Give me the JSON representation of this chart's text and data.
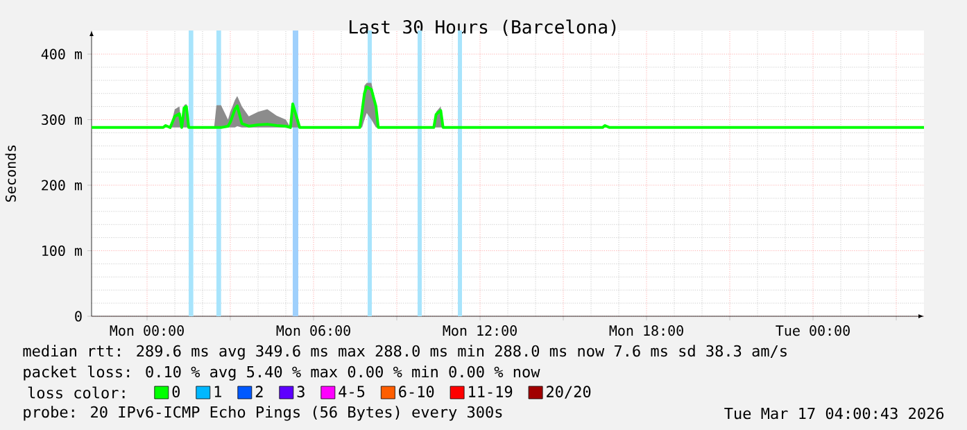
{
  "chart_data": {
    "type": "line",
    "title": "Last 30 Hours (Barcelona)",
    "ylabel": "Seconds",
    "xlim": [
      "2026-03-15T22:00",
      "2026-03-17T04:00"
    ],
    "xticks": [
      {
        "value": "2026-03-16T00:00",
        "label": "Mon 00:00"
      },
      {
        "value": "2026-03-16T03:00",
        "label": null
      },
      {
        "value": "2026-03-16T06:00",
        "label": "Mon 06:00"
      },
      {
        "value": "2026-03-16T09:00",
        "label": null
      },
      {
        "value": "2026-03-16T12:00",
        "label": "Mon 12:00"
      },
      {
        "value": "2026-03-16T15:00",
        "label": null
      },
      {
        "value": "2026-03-16T18:00",
        "label": "Mon 18:00"
      },
      {
        "value": "2026-03-16T21:00",
        "label": null
      },
      {
        "value": "2026-03-17T00:00",
        "label": "Tue 00:00"
      },
      {
        "value": "2026-03-17T03:00",
        "label": null
      }
    ],
    "ylim": [
      0,
      436
    ],
    "yticks": [
      0,
      {
        "value": 100,
        "label": "100 m"
      },
      {
        "value": 200,
        "label": "200 m"
      },
      {
        "value": 300,
        "label": "300 m"
      },
      {
        "value": 400,
        "label": "400 m"
      }
    ],
    "grid": true,
    "legend": "bottom",
    "legend_title": "loss color:",
    "bands": [
      {
        "axis": "x",
        "from": "2026-03-16T01:30",
        "to": "2026-03-16T01:40",
        "color": "#a8e4fc"
      },
      {
        "axis": "x",
        "from": "2026-03-16T02:30",
        "to": "2026-03-16T02:40",
        "color": "#a8e4fc"
      },
      {
        "axis": "x",
        "from": "2026-03-16T05:15",
        "to": "2026-03-16T05:27",
        "color": "#9fd0fc"
      },
      {
        "axis": "x",
        "from": "2026-03-16T07:57",
        "to": "2026-03-16T08:06",
        "color": "#a8e4fc"
      },
      {
        "axis": "x",
        "from": "2026-03-16T09:45",
        "to": "2026-03-16T09:54",
        "color": "#a8e4fc"
      },
      {
        "axis": "x",
        "from": "2026-03-16T11:12",
        "to": "2026-03-16T11:21",
        "color": "#a8e4fc"
      }
    ],
    "series": [
      {
        "name": "0",
        "color": "#00ff00",
        "x": [
          "2026-03-15T22:00",
          "2026-03-16T00:35",
          "2026-03-16T00:40",
          "2026-03-16T00:50",
          "2026-03-16T01:00",
          "2026-03-16T01:10",
          "2026-03-16T01:15",
          "2026-03-16T01:20",
          "2026-03-16T01:25",
          "2026-03-16T01:30",
          "2026-03-16T01:40",
          "2026-03-16T02:25",
          "2026-03-16T02:30",
          "2026-03-16T02:40",
          "2026-03-16T02:55",
          "2026-03-16T03:00",
          "2026-03-16T03:10",
          "2026-03-16T03:15",
          "2026-03-16T03:25",
          "2026-03-16T03:40",
          "2026-03-16T04:00",
          "2026-03-16T04:20",
          "2026-03-16T04:40",
          "2026-03-16T05:00",
          "2026-03-16T05:10",
          "2026-03-16T05:15",
          "2026-03-16T05:30",
          "2026-03-16T07:40",
          "2026-03-16T07:45",
          "2026-03-16T07:50",
          "2026-03-16T07:55",
          "2026-03-16T08:05",
          "2026-03-16T08:15",
          "2026-03-16T08:20",
          "2026-03-16T09:40",
          "2026-03-16T09:45",
          "2026-03-16T09:55",
          "2026-03-16T10:20",
          "2026-03-16T10:25",
          "2026-03-16T10:35",
          "2026-03-16T10:40",
          "2026-03-16T11:10",
          "2026-03-16T11:15",
          "2026-03-16T11:25",
          "2026-03-16T16:25",
          "2026-03-16T16:30",
          "2026-03-16T16:40",
          "2026-03-17T04:00"
        ],
        "values": [
          288,
          288,
          291,
          288,
          305,
          309,
          288,
          318,
          320,
          288,
          288,
          288,
          288,
          288,
          290,
          296,
          316,
          321,
          294,
          290,
          292,
          293,
          291,
          290,
          288,
          324,
          288,
          288,
          313,
          340,
          350,
          346,
          320,
          288,
          288,
          288,
          288,
          288,
          308,
          314,
          288,
          288,
          288,
          288,
          288,
          291,
          288,
          288
        ],
        "lower": [
          288,
          288,
          288,
          288,
          288,
          288,
          288,
          288,
          288,
          288,
          288,
          288,
          288,
          288,
          288,
          288,
          288,
          290,
          288,
          288,
          288,
          288,
          288,
          288,
          288,
          288,
          288,
          288,
          288,
          300,
          310,
          300,
          288,
          288,
          288,
          288,
          288,
          288,
          288,
          288,
          288,
          288,
          288,
          288,
          288,
          288,
          288,
          288
        ],
        "upper": [
          288,
          288,
          291,
          288,
          316,
          320,
          288,
          322,
          324,
          288,
          288,
          288,
          322,
          322,
          300,
          312,
          330,
          336,
          320,
          305,
          312,
          316,
          306,
          300,
          288,
          326,
          288,
          288,
          320,
          352,
          356,
          356,
          324,
          288,
          288,
          288,
          288,
          288,
          312,
          320,
          288,
          288,
          288,
          288,
          288,
          291,
          288,
          288
        ]
      },
      {
        "name": "1",
        "color": "#00b8ff"
      },
      {
        "name": "2",
        "color": "#0059ff"
      },
      {
        "name": "3",
        "color": "#5e00ff"
      },
      {
        "name": "4-5",
        "color": "#ff00ff"
      },
      {
        "name": "6-10",
        "color": "#ff5e00"
      },
      {
        "name": "11-19",
        "color": "#ff0000"
      },
      {
        "name": "20/20",
        "color": "#a10000"
      }
    ],
    "annotations": [
      "median rtt: 289.6 ms avg 349.6 ms max 288.0 ms min 288.0 ms now 7.6 ms sd 38.3 am/s",
      "packet loss: 0.10 % avg 5.40 % max 0.00 % min 0.00 % now",
      "probe: 20 IPv6-ICMP Echo Pings (56 Bytes) every 300s",
      "Tue Mar 17 04:00:43 2026"
    ]
  }
}
